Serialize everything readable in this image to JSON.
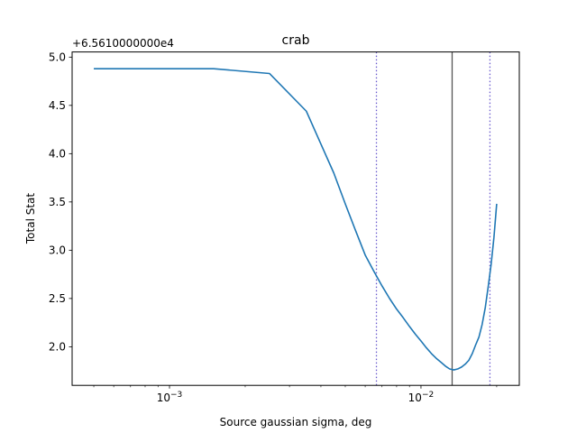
{
  "chart_data": {
    "type": "line",
    "title": "crab",
    "xlabel": "Source gaussian sigma, deg",
    "ylabel": "Total Stat",
    "y_offset_label": "+6.5610000000e4",
    "x_scale": "log",
    "xlim": [
      0.00041,
      0.0246
    ],
    "ylim": [
      1.6,
      5.0
    ],
    "x_ticks": [
      {
        "value": 0.001,
        "base": "10",
        "exp": "−3"
      },
      {
        "value": 0.01,
        "base": "10",
        "exp": "−2"
      }
    ],
    "y_ticks": [
      {
        "value": 2.0,
        "label": "2.0"
      },
      {
        "value": 2.5,
        "label": "2.5"
      },
      {
        "value": 3.0,
        "label": "3.0"
      },
      {
        "value": 3.5,
        "label": "3.5"
      },
      {
        "value": 4.0,
        "label": "4.0"
      },
      {
        "value": 4.5,
        "label": "4.5"
      },
      {
        "value": 5.0,
        "label": "5.0"
      }
    ],
    "grid": false,
    "series": [
      {
        "color": "#1f77b4",
        "x": [
          0.0005,
          0.0015,
          0.0025,
          0.0035,
          0.004,
          0.0045,
          0.005,
          0.0055,
          0.006,
          0.0065,
          0.007,
          0.0075,
          0.008,
          0.0085,
          0.009,
          0.0095,
          0.01,
          0.0105,
          0.011,
          0.0115,
          0.012,
          0.0125,
          0.013,
          0.0135,
          0.014,
          0.0145,
          0.015,
          0.0155,
          0.016,
          0.0165,
          0.017,
          0.0175,
          0.018,
          0.0185,
          0.019,
          0.0195,
          0.02
        ],
        "y": [
          4.88,
          4.88,
          4.83,
          4.44,
          4.1,
          3.8,
          3.48,
          3.2,
          2.95,
          2.78,
          2.63,
          2.5,
          2.39,
          2.3,
          2.21,
          2.13,
          2.06,
          1.99,
          1.93,
          1.88,
          1.84,
          1.8,
          1.77,
          1.76,
          1.77,
          1.79,
          1.82,
          1.86,
          1.93,
          2.02,
          2.1,
          2.23,
          2.4,
          2.62,
          2.85,
          3.13,
          3.48
        ]
      }
    ],
    "vlines": [
      {
        "x": 0.00665,
        "style": "dotted",
        "color": "#6a5acd"
      },
      {
        "x": 0.0133,
        "style": "solid",
        "color": "#555555"
      },
      {
        "x": 0.0188,
        "style": "dotted",
        "color": "#6a5acd"
      }
    ]
  }
}
